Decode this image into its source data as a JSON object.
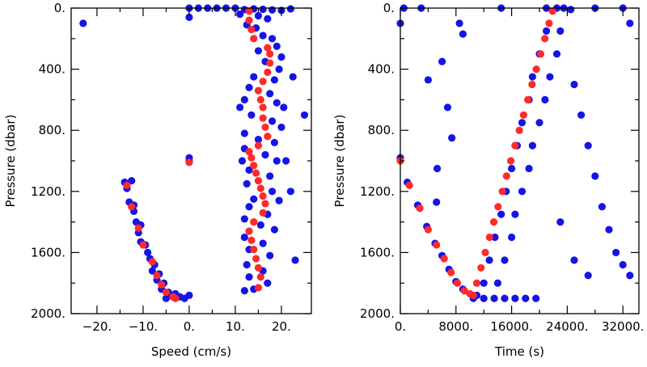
{
  "chart_data": [
    {
      "type": "scatter",
      "xlabel": "Speed (cm/s)",
      "ylabel": "Pressure (dbar)",
      "xlim": [
        -25.6,
        26.5
      ],
      "ylim": [
        0,
        2000
      ],
      "y_inverted": true,
      "xticks": [
        {
          "value": -20,
          "label": "−20."
        },
        {
          "value": -10,
          "label": "−10."
        },
        {
          "value": 0,
          "label": "0."
        },
        {
          "value": 10,
          "label": "10."
        },
        {
          "value": 20,
          "label": "20."
        }
      ],
      "yticks": [
        {
          "value": 0,
          "label": "0."
        },
        {
          "value": 400,
          "label": "400."
        },
        {
          "value": 800,
          "label": "800."
        },
        {
          "value": 1200,
          "label": "1200."
        },
        {
          "value": 1600,
          "label": "1600."
        },
        {
          "value": 2000,
          "label": "2000."
        }
      ],
      "series": [
        {
          "color": "#1414e6",
          "x": [
            12,
            14,
            16,
            18,
            20,
            22,
            11,
            15,
            17,
            12.5,
            14.5,
            16,
            18,
            19,
            15,
            20,
            16.5,
            19.5,
            14,
            18.5,
            13,
            17.5,
            12,
            19,
            11,
            13.5,
            18,
            20,
            12,
            15,
            18.5,
            12,
            16.5,
            11.5,
            19,
            13,
            17.5,
            12.5,
            18,
            14,
            19.5,
            13,
            17,
            12,
            15.5,
            18.5,
            12,
            16,
            13,
            17.5,
            12.5,
            16,
            13,
            17,
            12,
            14,
            -14,
            -12.5,
            -13.5,
            -13,
            -12,
            -12,
            -11.5,
            -10.5,
            -11,
            -10.5,
            -9.5,
            -9,
            -8.5,
            -7.5,
            -8,
            -6.5,
            -7,
            -5.5,
            -6,
            -4.5,
            -4,
            -2,
            -1,
            0,
            -5,
            -3,
            0,
            2,
            4,
            6,
            8,
            10,
            -23,
            0,
            0,
            0,
            25,
            22.5,
            23,
            21,
            22,
            20.5
          ],
          "y": [
            10,
            5,
            8,
            12,
            15,
            5,
            40,
            50,
            70,
            110,
            130,
            180,
            200,
            250,
            280,
            320,
            350,
            400,
            450,
            470,
            520,
            560,
            600,
            620,
            650,
            700,
            740,
            780,
            820,
            860,
            880,
            920,
            960,
            1000,
            1000,
            1060,
            1100,
            1150,
            1200,
            1250,
            1260,
            1300,
            1350,
            1380,
            1420,
            1450,
            1500,
            1540,
            1580,
            1620,
            1680,
            1720,
            1760,
            1800,
            1850,
            1840,
            1140,
            1130,
            1180,
            1270,
            1290,
            1330,
            1400,
            1420,
            1470,
            1530,
            1550,
            1600,
            1640,
            1680,
            1720,
            1740,
            1780,
            1800,
            1840,
            1860,
            1880,
            1890,
            1900,
            1880,
            1900,
            1870,
            0,
            0,
            0,
            0,
            0,
            0,
            100,
            60,
            980,
            1000,
            700,
            450,
            1650,
            1000,
            1200,
            650
          ]
        },
        {
          "color": "#ff2a2a",
          "x": [
            13,
            13,
            13.5,
            14,
            17,
            17.5,
            17.5,
            17,
            16,
            15,
            15.5,
            16,
            16,
            16.5,
            17,
            15,
            13,
            13.5,
            14,
            14.5,
            15,
            15.5,
            16,
            16.5,
            16,
            14,
            13,
            13.5,
            14,
            14.5,
            15,
            15.5,
            15,
            0,
            -13.5,
            -12.5,
            -11,
            -10,
            -8,
            -7,
            -6,
            -5,
            -3.5,
            -3
          ],
          "y": [
            20,
            80,
            140,
            200,
            260,
            300,
            360,
            420,
            480,
            540,
            600,
            650,
            720,
            780,
            840,
            900,
            940,
            980,
            1030,
            1080,
            1130,
            1180,
            1230,
            1280,
            1340,
            1400,
            1460,
            1520,
            1580,
            1640,
            1700,
            1760,
            1830,
            1010,
            1160,
            1300,
            1440,
            1550,
            1660,
            1750,
            1810,
            1860,
            1890,
            1900
          ]
        }
      ]
    },
    {
      "type": "scatter",
      "xlabel": "Time (s)",
      "ylabel": "Pressure (dbar)",
      "xlim": [
        0,
        34300
      ],
      "ylim": [
        0,
        2000
      ],
      "y_inverted": true,
      "xticks": [
        {
          "value": 0,
          "label": "0."
        },
        {
          "value": 8000,
          "label": "8000."
        },
        {
          "value": 16000,
          "label": "16000."
        },
        {
          "value": 24000,
          "label": "24000."
        },
        {
          "value": 32000,
          "label": "32000."
        }
      ],
      "yticks": [
        {
          "value": 0,
          "label": "0."
        },
        {
          "value": 400,
          "label": "400."
        },
        {
          "value": 800,
          "label": "800."
        },
        {
          "value": 1200,
          "label": "1200."
        },
        {
          "value": 1600,
          "label": "1600."
        },
        {
          "value": 2000,
          "label": "2000."
        }
      ],
      "series": [
        {
          "color": "#1414e6",
          "x": [
            21000,
            22500,
            23500,
            24500,
            21000,
            23000,
            20000,
            22500,
            19000,
            21500,
            18500,
            20800,
            17500,
            20000,
            16800,
            19000,
            16000,
            18500,
            15200,
            17500,
            14500,
            16500,
            13600,
            16000,
            12800,
            15000,
            12000,
            14000,
            11000,
            10500,
            12000,
            13500,
            15000,
            16500,
            18000,
            19500,
            0,
            1000,
            2500,
            3800,
            5000,
            6000,
            7000,
            8000,
            9000,
            0,
            500,
            3000,
            14500,
            4000,
            6000,
            6800,
            7400,
            5300,
            5200,
            8500,
            9000,
            25000,
            26000,
            27000,
            28000,
            29000,
            30000,
            31000,
            32000,
            33000,
            23000,
            25000,
            27000,
            33000,
            32000,
            28000
          ],
          "y": [
            0,
            0,
            0,
            10,
            150,
            150,
            300,
            300,
            450,
            450,
            600,
            600,
            750,
            750,
            900,
            900,
            1050,
            1050,
            1200,
            1200,
            1350,
            1350,
            1500,
            1500,
            1650,
            1650,
            1800,
            1800,
            1880,
            1900,
            1900,
            1900,
            1900,
            1900,
            1900,
            1900,
            980,
            1140,
            1290,
            1430,
            1540,
            1620,
            1710,
            1790,
            1840,
            100,
            0,
            0,
            0,
            470,
            350,
            650,
            850,
            1050,
            1270,
            100,
            170,
            500,
            700,
            900,
            1100,
            1300,
            1450,
            1600,
            1680,
            1750,
            1400,
            1650,
            1750,
            100,
            0,
            0
          ]
        },
        {
          "color": "#ff2a2a",
          "x": [
            21880,
            21390,
            20780,
            20170,
            19550,
            18940,
            18330,
            17720,
            17110,
            16490,
            15880,
            15270,
            14660,
            14050,
            13440,
            12830,
            12210,
            11600,
            10990,
            10500,
            0,
            1300,
            2800,
            4000,
            5200,
            6300,
            7300,
            8200,
            9200,
            10000
          ],
          "y": [
            20,
            100,
            200,
            300,
            400,
            500,
            600,
            700,
            800,
            900,
            1000,
            1100,
            1200,
            1300,
            1400,
            1500,
            1600,
            1700,
            1800,
            1880,
            1000,
            1160,
            1310,
            1450,
            1550,
            1640,
            1730,
            1800,
            1850,
            1870
          ]
        }
      ]
    }
  ]
}
